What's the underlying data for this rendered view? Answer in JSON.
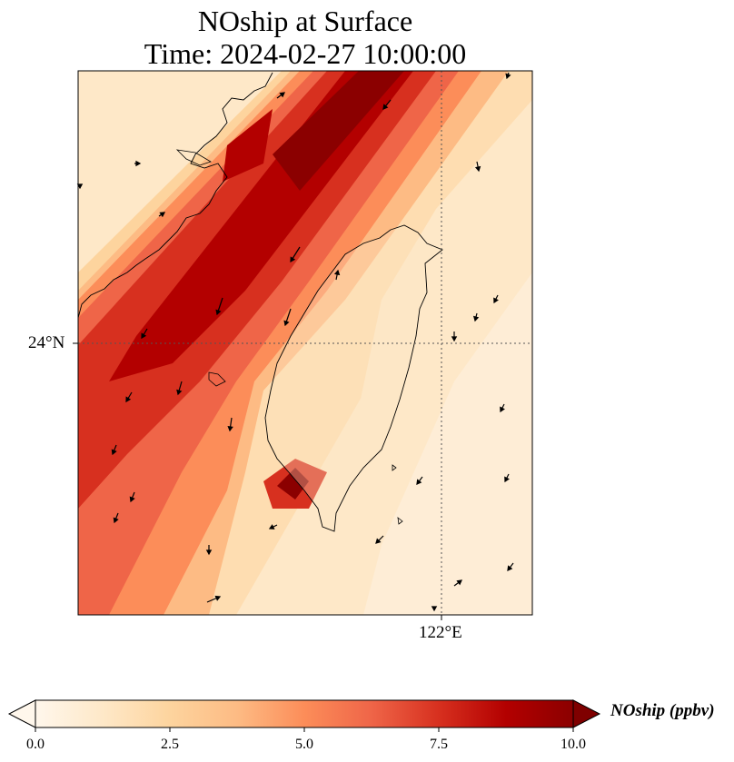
{
  "title": {
    "line1": "NOship at Surface",
    "line2": "Time: 2024-02-27 10:00:00"
  },
  "map": {
    "lat_label": "24°N",
    "lon_label": "122°E",
    "lat_line": 24,
    "lon_line": 122
  },
  "colorbar": {
    "label": "NOship (ppbv)",
    "ticks": [
      "0.0",
      "2.5",
      "5.0",
      "7.5",
      "10.0"
    ],
    "tick_values": [
      0,
      2.5,
      5,
      7.5,
      10
    ],
    "min": 0,
    "max": 10,
    "colormap": [
      "#fff7ec",
      "#fee8c8",
      "#fdd49e",
      "#fdbb84",
      "#fc8d59",
      "#ef6548",
      "#d7301f",
      "#b30000",
      "#7f0000"
    ]
  }
}
